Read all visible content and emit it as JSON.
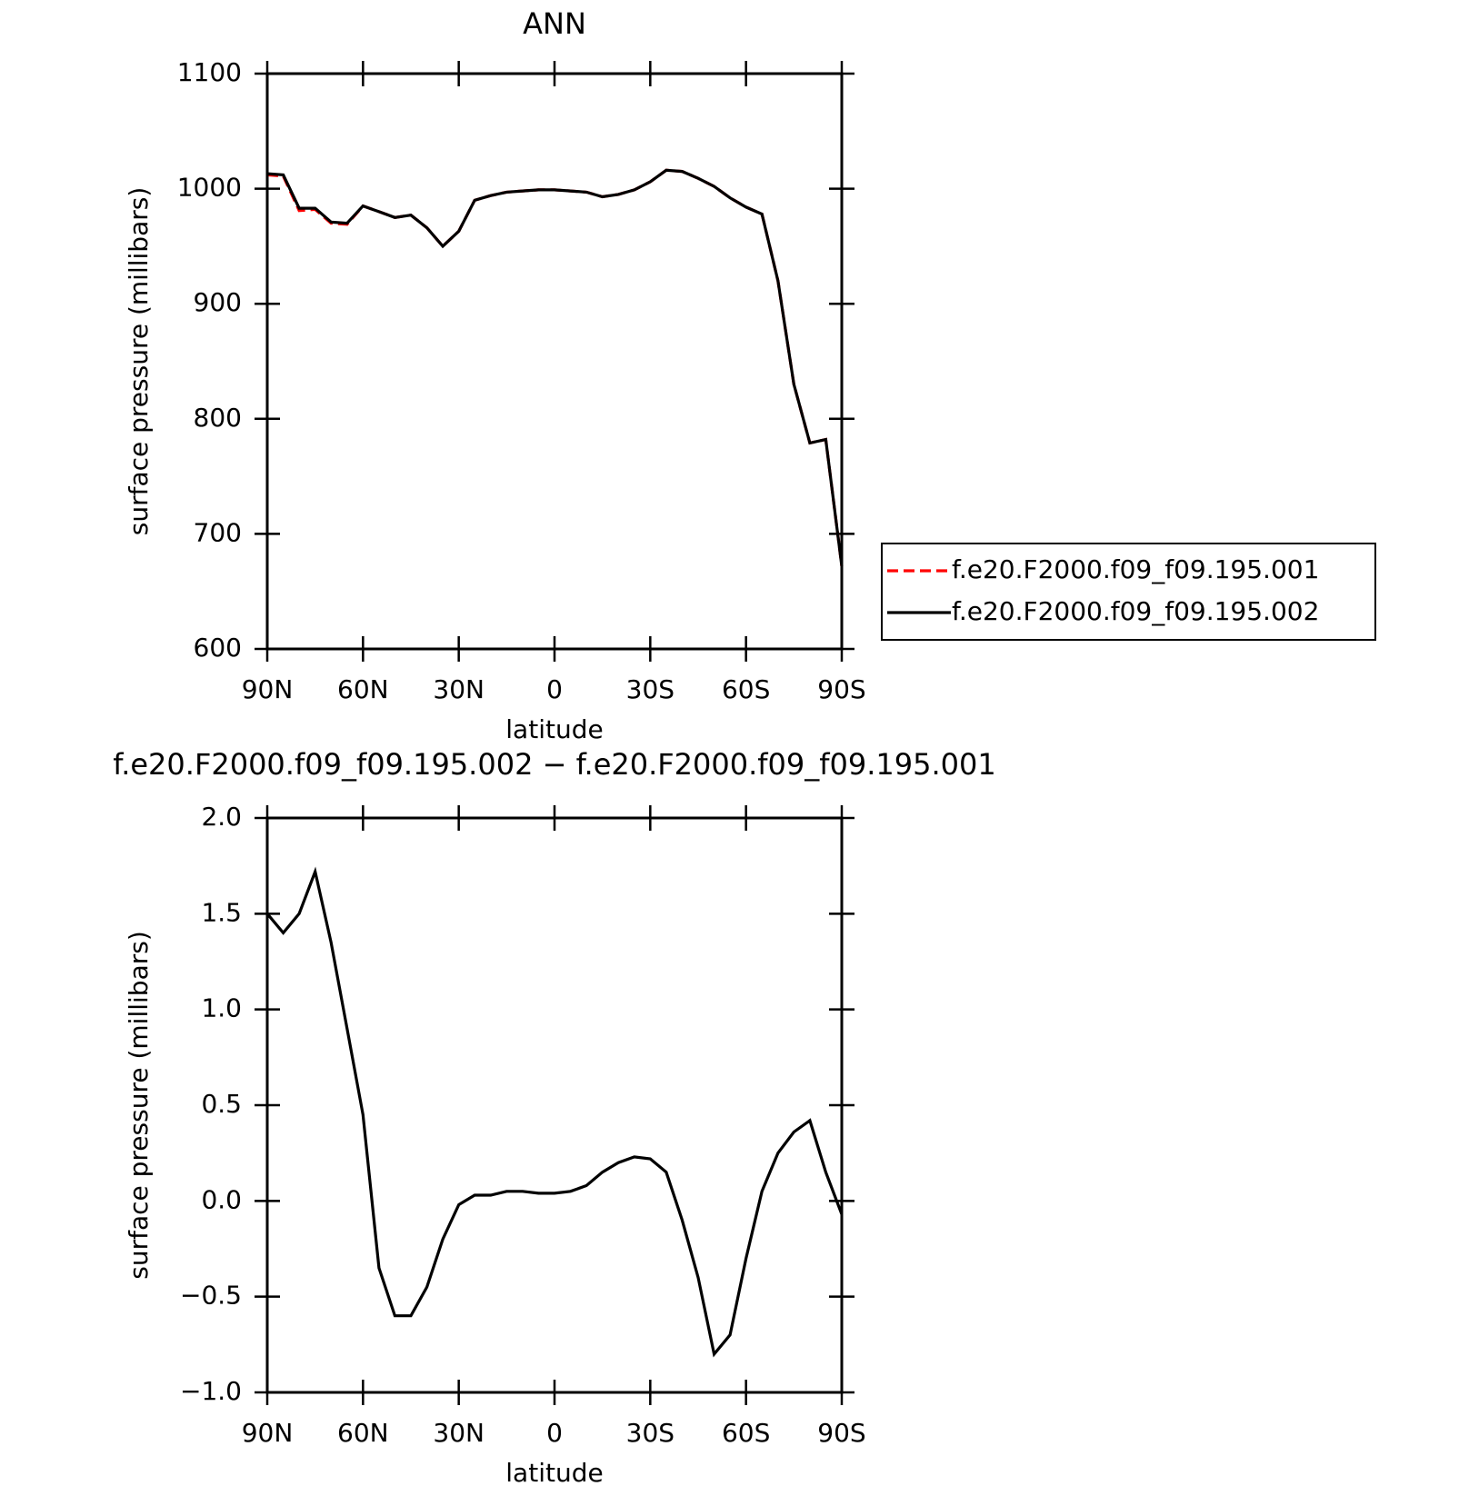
{
  "chart_data": [
    {
      "type": "line",
      "title": "ANN",
      "xlabel": "latitude",
      "ylabel": "surface pressure (millibars)",
      "x": [
        90,
        85,
        80,
        75,
        70,
        65,
        60,
        55,
        50,
        45,
        40,
        35,
        30,
        25,
        20,
        15,
        10,
        5,
        0,
        -5,
        -10,
        -15,
        -20,
        -25,
        -30,
        -35,
        -40,
        -45,
        -50,
        -55,
        -60,
        -65,
        -70,
        -75,
        -80,
        -85,
        -90
      ],
      "series": [
        {
          "name": "f.e20.F2000.f09_f09.195.001",
          "color": "#ff0000",
          "line_style": "dashed",
          "values": [
            1012,
            1011,
            981,
            982,
            970,
            969,
            985,
            980,
            975,
            977,
            966,
            950,
            963,
            990,
            994,
            997,
            998,
            999,
            999,
            998,
            997,
            993,
            995,
            999,
            1006,
            1016,
            1015,
            1009,
            1002,
            992,
            984,
            978,
            920,
            830,
            779,
            782,
            672
          ]
        },
        {
          "name": "f.e20.F2000.f09_f09.195.002",
          "color": "#000000",
          "line_style": "solid",
          "values": [
            1013,
            1012,
            983,
            983,
            971,
            970,
            985,
            980,
            975,
            977,
            966,
            950,
            963,
            990,
            994,
            997,
            998,
            999,
            999,
            998,
            997,
            993,
            995,
            999,
            1006,
            1016,
            1015,
            1009,
            1002,
            992,
            984,
            978,
            920,
            830,
            779,
            782,
            672
          ]
        }
      ],
      "xlim": [
        90,
        -90
      ],
      "xticks": [
        {
          "value": 90,
          "label": "90N"
        },
        {
          "value": 60,
          "label": "60N"
        },
        {
          "value": 30,
          "label": "30N"
        },
        0,
        {
          "value": -30,
          "label": "30S"
        },
        {
          "value": -60,
          "label": "60S"
        },
        {
          "value": -90,
          "label": "90S"
        }
      ],
      "ylim": [
        600,
        1100
      ],
      "yticks": [
        600,
        700,
        800,
        900,
        1000,
        1100
      ],
      "legend": "right"
    },
    {
      "type": "line",
      "title": "f.e20.F2000.f09_f09.195.002 − f.e20.F2000.f09_f09.195.001",
      "xlabel": "latitude",
      "ylabel": "surface pressure (millibars)",
      "x": [
        90,
        85,
        80,
        75,
        70,
        65,
        60,
        55,
        50,
        45,
        40,
        35,
        30,
        25,
        20,
        15,
        10,
        5,
        0,
        -5,
        -10,
        -15,
        -20,
        -25,
        -30,
        -35,
        -40,
        -45,
        -50,
        -55,
        -60,
        -65,
        -70,
        -75,
        -80,
        -85,
        -90
      ],
      "series": [
        {
          "color": "#000000",
          "line_style": "solid",
          "values": [
            1.5,
            1.4,
            1.5,
            1.72,
            1.35,
            0.9,
            0.45,
            -0.35,
            -0.6,
            -0.6,
            -0.45,
            -0.2,
            -0.02,
            0.03,
            0.03,
            0.05,
            0.05,
            0.04,
            0.04,
            0.05,
            0.08,
            0.15,
            0.2,
            0.23,
            0.22,
            0.15,
            -0.1,
            -0.4,
            -0.8,
            -0.7,
            -0.3,
            0.05,
            0.25,
            0.36,
            0.42,
            0.15,
            -0.07
          ]
        }
      ],
      "xlim": [
        90,
        -90
      ],
      "xticks": [
        {
          "value": 90,
          "label": "90N"
        },
        {
          "value": 60,
          "label": "60N"
        },
        {
          "value": 30,
          "label": "30N"
        },
        0,
        {
          "value": -30,
          "label": "30S"
        },
        {
          "value": -60,
          "label": "60S"
        },
        {
          "value": -90,
          "label": "90S"
        }
      ],
      "ylim": [
        -1,
        2
      ],
      "yticks": [
        {
          "value": -1,
          "label": "−1.0"
        },
        {
          "value": -0.5,
          "label": "−0.5"
        },
        {
          "value": 0,
          "label": "0.0"
        },
        0.5,
        {
          "value": 1,
          "label": "1.0"
        },
        1.5,
        {
          "value": 2,
          "label": "2.0"
        }
      ]
    }
  ]
}
